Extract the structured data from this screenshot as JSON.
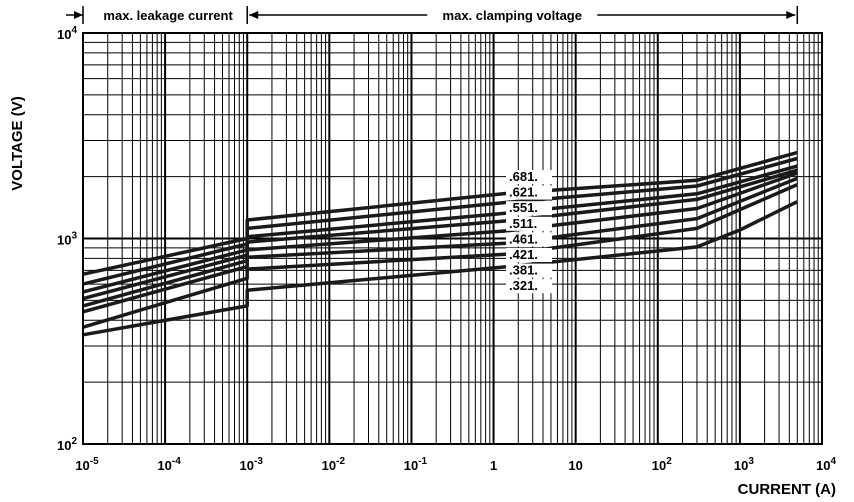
{
  "chart_data": {
    "type": "line",
    "xscale": "log",
    "yscale": "log",
    "xlabel": "CURRENT (A)",
    "ylabel": "VOLTAGE (V)",
    "xlim": [
      1e-05,
      10000
    ],
    "ylim": [
      100,
      10000
    ],
    "grid": true,
    "x_ticks": [
      {
        "value": 1e-05,
        "base": "10",
        "exp": "-5"
      },
      {
        "value": 0.0001,
        "base": "10",
        "exp": "-4"
      },
      {
        "value": 0.001,
        "base": "10",
        "exp": "-3"
      },
      {
        "value": 0.01,
        "base": "10",
        "exp": "-2"
      },
      {
        "value": 0.1,
        "base": "10",
        "exp": "-1"
      },
      {
        "value": 1,
        "base": "1",
        "exp": ""
      },
      {
        "value": 10,
        "base": "10",
        "exp": ""
      },
      {
        "value": 100,
        "base": "10",
        "exp": "2"
      },
      {
        "value": 1000,
        "base": "10",
        "exp": "3"
      },
      {
        "value": 10000,
        "base": "10",
        "exp": "4"
      }
    ],
    "y_ticks": [
      {
        "value": 100,
        "base": "10",
        "exp": "2"
      },
      {
        "value": 1000,
        "base": "10",
        "exp": "3"
      },
      {
        "value": 10000,
        "base": "10",
        "exp": "4"
      }
    ],
    "regions": [
      {
        "label": "max. leakage current",
        "x_from": 1e-05,
        "x_to": 0.001
      },
      {
        "label": "max. clamping voltage",
        "x_from": 0.001,
        "x_to": 5000
      }
    ],
    "label_anchor_x": 1.5,
    "series": [
      {
        "name": ".681.",
        "points": [
          [
            1e-05,
            670
          ],
          [
            0.001,
            1000
          ],
          [
            0.001,
            1230
          ],
          [
            1.5,
            1660
          ],
          [
            300,
            1920
          ],
          [
            5000,
            2620
          ]
        ]
      },
      {
        "name": ".621.",
        "points": [
          [
            1e-05,
            600
          ],
          [
            0.001,
            940
          ],
          [
            0.001,
            1120
          ],
          [
            1.5,
            1500
          ],
          [
            300,
            1800
          ],
          [
            5000,
            2450
          ]
        ]
      },
      {
        "name": ".551.",
        "points": [
          [
            1e-05,
            550
          ],
          [
            0.001,
            880
          ],
          [
            0.001,
            1020
          ],
          [
            1.5,
            1330
          ],
          [
            300,
            1650
          ],
          [
            5000,
            2250
          ]
        ]
      },
      {
        "name": ".511.",
        "points": [
          [
            1e-05,
            510
          ],
          [
            0.001,
            830
          ],
          [
            0.001,
            960
          ],
          [
            1.5,
            1220
          ],
          [
            300,
            1550
          ],
          [
            5000,
            2150
          ]
        ]
      },
      {
        "name": ".461.",
        "points": [
          [
            1e-05,
            470
          ],
          [
            0.001,
            780
          ],
          [
            0.001,
            880
          ],
          [
            1.5,
            1090
          ],
          [
            300,
            1400
          ],
          [
            5000,
            2080
          ]
        ]
      },
      {
        "name": ".421.",
        "points": [
          [
            1e-05,
            440
          ],
          [
            0.001,
            730
          ],
          [
            0.001,
            810
          ],
          [
            1.5,
            950
          ],
          [
            300,
            1250
          ],
          [
            5000,
            1960
          ]
        ]
      },
      {
        "name": ".381.",
        "points": [
          [
            1e-05,
            370
          ],
          [
            0.001,
            640
          ],
          [
            0.001,
            710
          ],
          [
            1.5,
            840
          ],
          [
            300,
            1120
          ],
          [
            5000,
            1830
          ]
        ]
      },
      {
        "name": ".321.",
        "points": [
          [
            1e-05,
            340
          ],
          [
            0.001,
            470
          ],
          [
            0.001,
            560
          ],
          [
            1.5,
            730
          ],
          [
            300,
            910
          ],
          [
            1000,
            1100
          ],
          [
            5000,
            1510
          ]
        ]
      }
    ]
  }
}
